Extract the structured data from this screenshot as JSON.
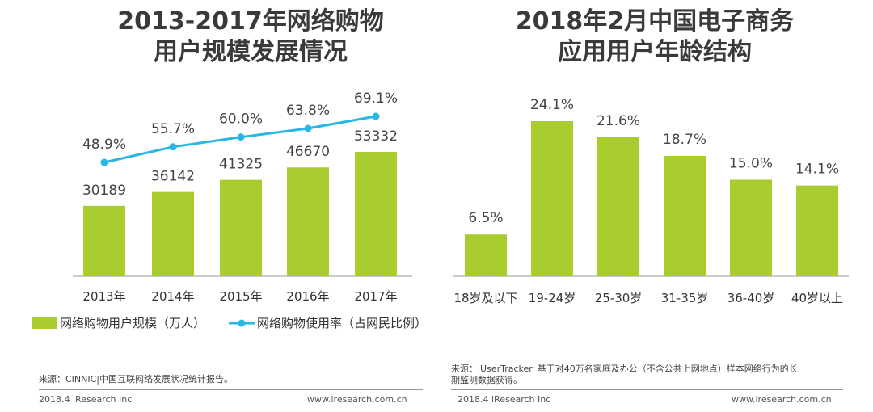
{
  "chart_data": [
    {
      "type": "bar",
      "title_lines": [
        "2013-2017年网络购物",
        "用户规模发展情况"
      ],
      "categories": [
        "2013年",
        "2014年",
        "2015年",
        "2016年",
        "2017年"
      ],
      "series": [
        {
          "name": "网络购物用户规模（万人）",
          "type": "bar",
          "values": [
            30189,
            36142,
            41325,
            46670,
            53332
          ],
          "labels": [
            "30189",
            "36142",
            "41325",
            "46670",
            "53332"
          ],
          "color": "#a8cc2e"
        },
        {
          "name": "网络购物使用率（占网民比例）",
          "type": "line",
          "values": [
            48.9,
            55.7,
            60.0,
            63.8,
            69.1
          ],
          "labels": [
            "48.9%",
            "55.7%",
            "60.0%",
            "63.8%",
            "69.1%"
          ],
          "color": "#29b6e6"
        }
      ],
      "legend": [
        "网络购物用户规模（万人）",
        "网络购物使用率（占网民比例）"
      ],
      "source": "来源：CINNIC|中国互联网络发展状况统计报告。",
      "footer_left": "2018.4 iResearch Inc",
      "footer_right": "www.iresearch.com.cn"
    },
    {
      "type": "bar",
      "title_lines": [
        "2018年2月中国电子商务",
        "应用用户年龄结构"
      ],
      "categories": [
        "18岁及以下",
        "19-24岁",
        "25-30岁",
        "31-35岁",
        "36-40岁",
        "40岁以上"
      ],
      "values": [
        6.5,
        24.1,
        21.6,
        18.7,
        15.0,
        14.1
      ],
      "labels": [
        "6.5%",
        "24.1%",
        "21.6%",
        "18.7%",
        "15.0%",
        "14.1%"
      ],
      "color": "#a8cc2e",
      "source_lines": [
        "来源：iUserTracker. 基于对40万名家庭及办公（不含公共上网地点）样本网络行为的长",
        "期监测数据获得。"
      ],
      "footer_left": "2018.4 iResearch Inc",
      "footer_right": "www.iresearch.com.cn"
    }
  ]
}
